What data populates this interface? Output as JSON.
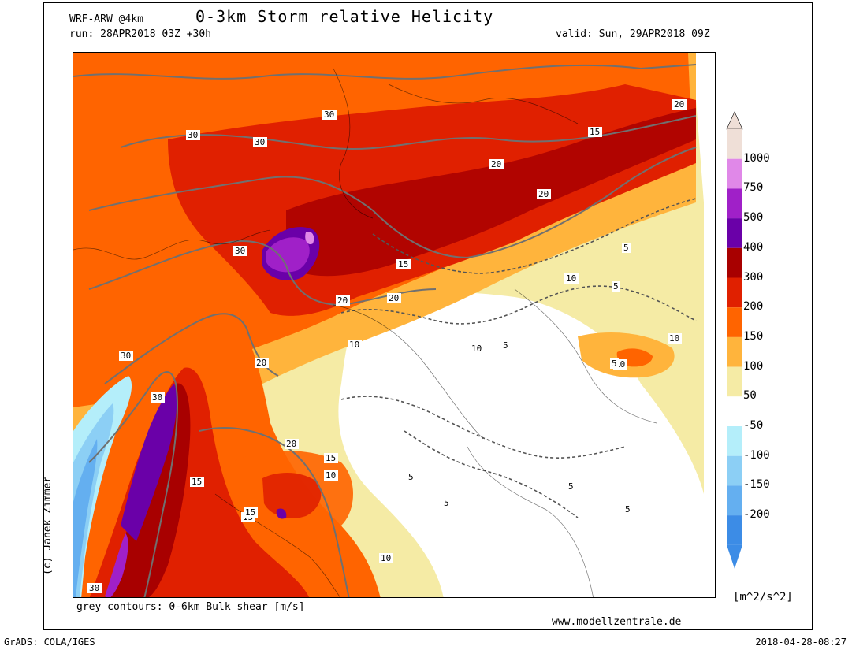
{
  "header": {
    "model": "WRF-ARW @4km",
    "title": "0-3km Storm relative Helicity",
    "run": "run: 28APR2018 03Z +30h",
    "valid": "valid: Sun, 29APR2018 09Z"
  },
  "author": "(c) Janek Zimmer",
  "contour_note": "grey contours: 0-6km Bulk shear [m/s]",
  "website": "www.modellzentrale.de",
  "colorbar": {
    "units": "[m^2/s^2]",
    "levels": [
      {
        "label": "1000",
        "color": "#efdfd7"
      },
      {
        "label": "750",
        "color": "#e088e8"
      },
      {
        "label": "500",
        "color": "#a020c8"
      },
      {
        "label": "400",
        "color": "#6a00a8"
      },
      {
        "label": "300",
        "color": "#a80000"
      },
      {
        "label": "200",
        "color": "#e02000"
      },
      {
        "label": "150",
        "color": "#ff6400"
      },
      {
        "label": "100",
        "color": "#ffb43c"
      },
      {
        "label": "50",
        "color": "#f5eba5"
      },
      {
        "label": "-50",
        "color": "#ffffff"
      },
      {
        "label": "-100",
        "color": "#b4eefa"
      },
      {
        "label": "-150",
        "color": "#8ccff5"
      },
      {
        "label": "-200",
        "color": "#64aff0"
      },
      {
        "label": "",
        "color": "#3c8ce6"
      }
    ],
    "bottom_color": "#3c8ce6"
  },
  "contour_labels": [
    "30",
    "30",
    "30",
    "30",
    "30",
    "30",
    "30",
    "20",
    "20",
    "20",
    "20",
    "20",
    "20",
    "20",
    "15",
    "15",
    "15",
    "15",
    "15",
    "15",
    "10",
    "10",
    "10",
    "10",
    "10",
    "10",
    "10",
    "5",
    "5",
    "5",
    "5",
    "5",
    "5",
    "5",
    "5"
  ],
  "footer": {
    "left": "GrADS: COLA/IGES",
    "right": "2018-04-28-08:27"
  }
}
